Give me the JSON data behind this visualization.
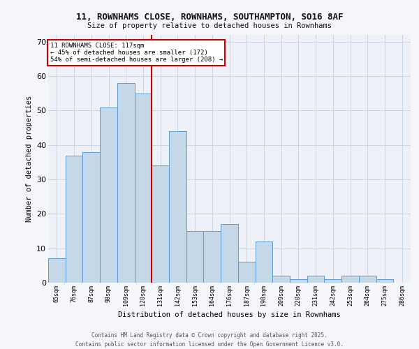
{
  "title": "11, ROWNHAMS CLOSE, ROWNHAMS, SOUTHAMPTON, SO16 8AF",
  "subtitle": "Size of property relative to detached houses in Rownhams",
  "xlabel": "Distribution of detached houses by size in Rownhams",
  "ylabel": "Number of detached properties",
  "categories": [
    "65sqm",
    "76sqm",
    "87sqm",
    "98sqm",
    "109sqm",
    "120sqm",
    "131sqm",
    "142sqm",
    "153sqm",
    "164sqm",
    "176sqm",
    "187sqm",
    "198sqm",
    "209sqm",
    "220sqm",
    "231sqm",
    "242sqm",
    "253sqm",
    "264sqm",
    "275sqm",
    "286sqm"
  ],
  "values": [
    7,
    37,
    38,
    51,
    58,
    55,
    34,
    44,
    15,
    15,
    17,
    6,
    12,
    2,
    1,
    2,
    1,
    2,
    2,
    1,
    0
  ],
  "bar_color": "#c5d8e8",
  "bar_edge_color": "#5b9bd5",
  "background_color": "#eef2f8",
  "grid_color": "#c8d4e4",
  "vline_index": 5,
  "vline_color": "#cc0000",
  "annotation_text": "11 ROWNHAMS CLOSE: 117sqm\n← 45% of detached houses are smaller (172)\n54% of semi-detached houses are larger (208) →",
  "annotation_box_color": "#ffffff",
  "annotation_box_edge": "#cc0000",
  "footer_text": "Contains HM Land Registry data © Crown copyright and database right 2025.\nContains public sector information licensed under the Open Government Licence v3.0.",
  "ylim": [
    0,
    72
  ],
  "yticks": [
    0,
    10,
    20,
    30,
    40,
    50,
    60,
    70
  ],
  "fig_bg": "#f4f6fa"
}
